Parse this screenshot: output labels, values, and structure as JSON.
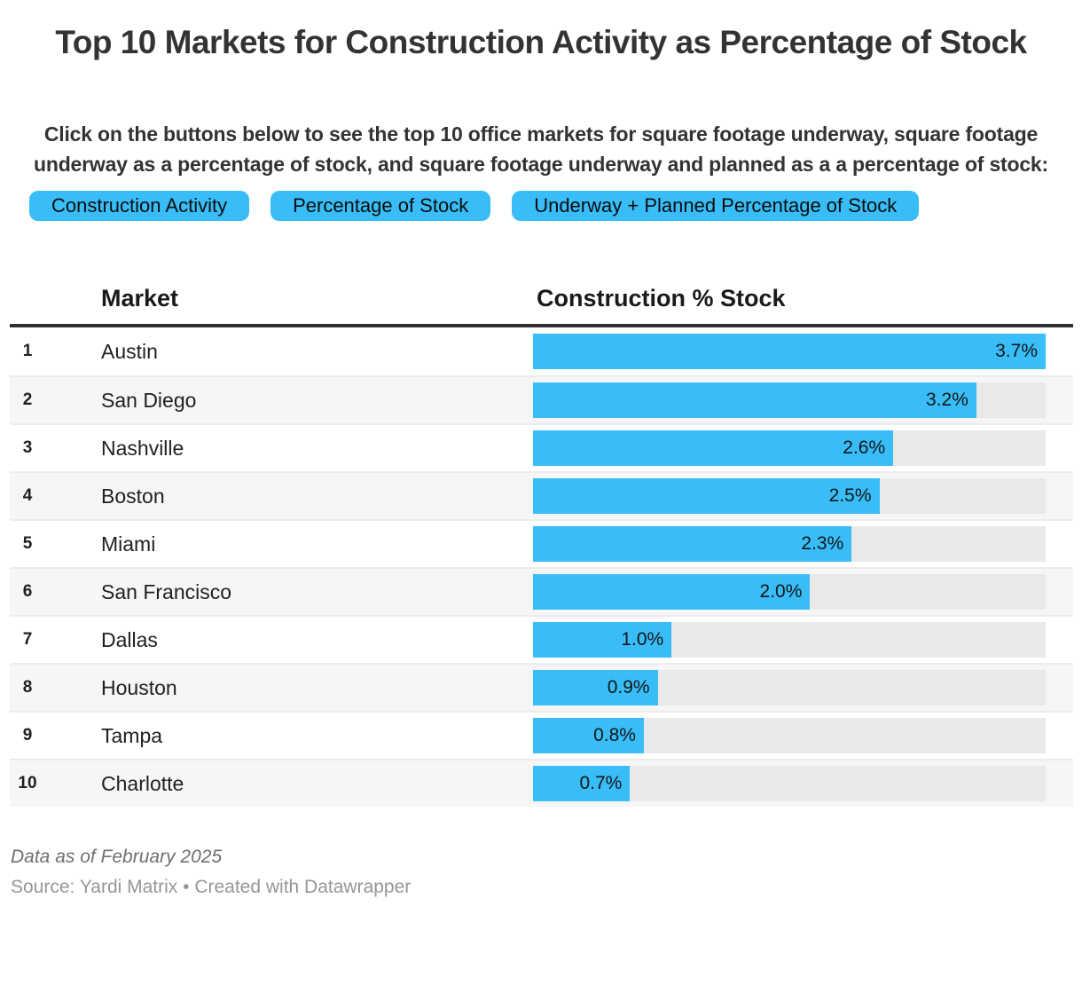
{
  "accent_color": "#38bdf8",
  "header": {
    "title": "Top 10 Markets for Construction Activity as Percentage of Stock",
    "description": "Click on the buttons below to see the top 10 office markets for square footage underway, square footage underway as a percentage of stock, and square footage underway and planned as a a percentage of stock:"
  },
  "buttons": [
    {
      "label": "Construction Activity"
    },
    {
      "label": "Percentage of Stock"
    },
    {
      "label": "Underway + Planned Percentage of Stock"
    }
  ],
  "table": {
    "columns": {
      "market": "Market",
      "value": "Construction % Stock"
    },
    "rows": [
      {
        "rank": "1",
        "market": "Austin",
        "value": 3.7,
        "label": "3.7%"
      },
      {
        "rank": "2",
        "market": "San Diego",
        "value": 3.2,
        "label": "3.2%"
      },
      {
        "rank": "3",
        "market": "Nashville",
        "value": 2.6,
        "label": "2.6%"
      },
      {
        "rank": "4",
        "market": "Boston",
        "value": 2.5,
        "label": "2.5%"
      },
      {
        "rank": "5",
        "market": "Miami",
        "value": 2.3,
        "label": "2.3%"
      },
      {
        "rank": "6",
        "market": "San Francisco",
        "value": 2.0,
        "label": "2.0%"
      },
      {
        "rank": "7",
        "market": "Dallas",
        "value": 1.0,
        "label": "1.0%"
      },
      {
        "rank": "8",
        "market": "Houston",
        "value": 0.9,
        "label": "0.9%"
      },
      {
        "rank": "9",
        "market": "Tampa",
        "value": 0.8,
        "label": "0.8%"
      },
      {
        "rank": "10",
        "market": "Charlotte",
        "value": 0.7,
        "label": "0.7%"
      }
    ]
  },
  "footer": {
    "note": "Data as of February 2025",
    "source_prefix": "Source: ",
    "source_name": "Yardi Matrix",
    "separator": " • ",
    "created_with": "Created with Datawrapper"
  },
  "chart_data": {
    "type": "bar",
    "orientation": "horizontal",
    "title": "Top 10 Markets for Construction Activity as Percentage of Stock",
    "categories": [
      "Austin",
      "San Diego",
      "Nashville",
      "Boston",
      "Miami",
      "San Francisco",
      "Dallas",
      "Houston",
      "Tampa",
      "Charlotte"
    ],
    "values": [
      3.7,
      3.2,
      2.6,
      2.5,
      2.3,
      2.0,
      1.0,
      0.9,
      0.8,
      0.7
    ],
    "value_labels": [
      "3.7%",
      "3.2%",
      "2.6%",
      "2.5%",
      "2.3%",
      "2.0%",
      "1.0%",
      "0.9%",
      "0.8%",
      "0.7%"
    ],
    "xlabel": "Construction % Stock",
    "ylabel": "Market",
    "xlim": [
      0,
      3.7
    ],
    "grid": false,
    "legend": "none",
    "bar_color": "#38bdf8",
    "track_color": "#e9e9e9"
  }
}
